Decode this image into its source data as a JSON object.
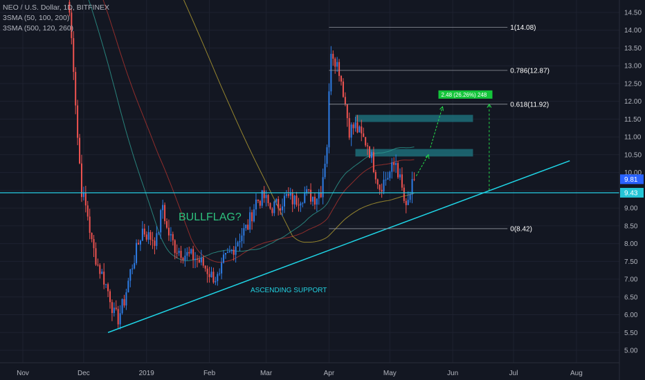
{
  "legend": {
    "symbol_line": "NEO / U.S. Dollar, 1D, BITFINEX",
    "sma_fast": "3SMA (50, 100, 200)",
    "sma_slow": "3SMA (500, 120, 260)"
  },
  "chart_data": {
    "type": "candlestick",
    "title": "NEO / U.S. Dollar, 1D, BITFINEX",
    "xlabel": "",
    "ylabel": "",
    "ylim": [
      4.7,
      14.7
    ],
    "yticks": [
      5.0,
      5.5,
      6.0,
      6.5,
      7.0,
      7.5,
      8.0,
      8.5,
      9.0,
      9.5,
      10.0,
      10.5,
      11.0,
      11.5,
      12.0,
      12.5,
      13.0,
      13.5,
      14.0,
      14.5
    ],
    "ytick_labels": [
      "5.00",
      "5.50",
      "6.00",
      "6.50",
      "7.00",
      "7.50",
      "8.00",
      "8.50",
      "9.00",
      "9.50",
      "10.00",
      "10.50",
      "11.00",
      "11.50",
      "12.00",
      "12.50",
      "13.00",
      "13.50",
      "14.00",
      "14.50"
    ],
    "xticks": [
      "Nov",
      "Dec",
      "2019",
      "Feb",
      "Mar",
      "Apr",
      "May",
      "Jun",
      "Jul",
      "Aug"
    ],
    "grid": true,
    "colors": {
      "up": "#2e7de6",
      "down": "#ef5350",
      "background": "#131722",
      "support": "#1fd5e6",
      "hline": "#26d0e6"
    },
    "price_path": [
      {
        "date": "Nov 24",
        "price": 14.5
      },
      {
        "date": "Nov 26",
        "price": 13.0
      },
      {
        "date": "Nov 28",
        "price": 11.0
      },
      {
        "date": "Nov 30",
        "price": 9.5
      },
      {
        "date": "Dec 3",
        "price": 8.8
      },
      {
        "date": "Dec 5",
        "price": 8.0
      },
      {
        "date": "Dec 8",
        "price": 7.4
      },
      {
        "date": "Dec 11",
        "price": 7.0
      },
      {
        "date": "Dec 14",
        "price": 6.5
      },
      {
        "date": "Dec 16",
        "price": 6.0
      },
      {
        "date": "Dec 18",
        "price": 5.9
      },
      {
        "date": "Dec 21",
        "price": 6.4
      },
      {
        "date": "Dec 24",
        "price": 7.2
      },
      {
        "date": "Dec 27",
        "price": 7.8
      },
      {
        "date": "Dec 30",
        "price": 8.4
      },
      {
        "date": "Jan 2",
        "price": 8.2
      },
      {
        "date": "Jan 6",
        "price": 8.1
      },
      {
        "date": "Jan 9",
        "price": 9.1
      },
      {
        "date": "Jan 11",
        "price": 8.4
      },
      {
        "date": "Jan 15",
        "price": 7.9
      },
      {
        "date": "Jan 20",
        "price": 7.7
      },
      {
        "date": "Jan 25",
        "price": 7.6
      },
      {
        "date": "Jan 29",
        "price": 7.4
      },
      {
        "date": "Feb 2",
        "price": 7.1
      },
      {
        "date": "Feb 6",
        "price": 7.0
      },
      {
        "date": "Feb 8",
        "price": 7.5
      },
      {
        "date": "Feb 12",
        "price": 7.8
      },
      {
        "date": "Feb 16",
        "price": 8.2
      },
      {
        "date": "Feb 20",
        "price": 8.5
      },
      {
        "date": "Feb 24",
        "price": 9.2
      },
      {
        "date": "Feb 28",
        "price": 9.3
      },
      {
        "date": "Mar 3",
        "price": 9.0
      },
      {
        "date": "Mar 7",
        "price": 9.1
      },
      {
        "date": "Mar 11",
        "price": 9.3
      },
      {
        "date": "Mar 15",
        "price": 9.2
      },
      {
        "date": "Mar 20",
        "price": 9.4
      },
      {
        "date": "Mar 25",
        "price": 9.3
      },
      {
        "date": "Mar 28",
        "price": 9.5
      },
      {
        "date": "Mar 31",
        "price": 10.8
      },
      {
        "date": "Apr 2",
        "price": 13.5
      },
      {
        "date": "Apr 4",
        "price": 13.2
      },
      {
        "date": "Apr 6",
        "price": 12.9
      },
      {
        "date": "Apr 8",
        "price": 12.3
      },
      {
        "date": "Apr 11",
        "price": 11.2
      },
      {
        "date": "Apr 14",
        "price": 11.3
      },
      {
        "date": "Apr 17",
        "price": 11.0
      },
      {
        "date": "Apr 20",
        "price": 10.8
      },
      {
        "date": "Apr 23",
        "price": 10.2
      },
      {
        "date": "Apr 26",
        "price": 9.6
      },
      {
        "date": "Apr 30",
        "price": 9.9
      },
      {
        "date": "May 4",
        "price": 10.3
      },
      {
        "date": "May 7",
        "price": 9.5
      },
      {
        "date": "May 9",
        "price": 8.9
      },
      {
        "date": "May 11",
        "price": 9.4
      },
      {
        "date": "May 13",
        "price": 9.81
      }
    ],
    "last_price": "9.81",
    "horizontal_level": "9.43",
    "fibonacci": [
      {
        "label": "1(14.08)",
        "price": 14.08
      },
      {
        "label": "0.786(12.87)",
        "price": 12.87
      },
      {
        "label": "0.618(11.92)",
        "price": 11.92
      },
      {
        "label": "0(8.42)",
        "price": 8.42
      }
    ],
    "target_label": "2.48 (26.26%) 248",
    "support_line": {
      "from": {
        "date": "Dec 13",
        "price": 5.5
      },
      "to": {
        "date": "Jun 29",
        "price": 9.7
      }
    },
    "zones": [
      {
        "from": 11.42,
        "to": 11.62
      },
      {
        "from": 10.45,
        "to": 10.66
      }
    ],
    "annotations": [
      "BULLFLAG?",
      "ASCENDING SUPPORT"
    ]
  }
}
